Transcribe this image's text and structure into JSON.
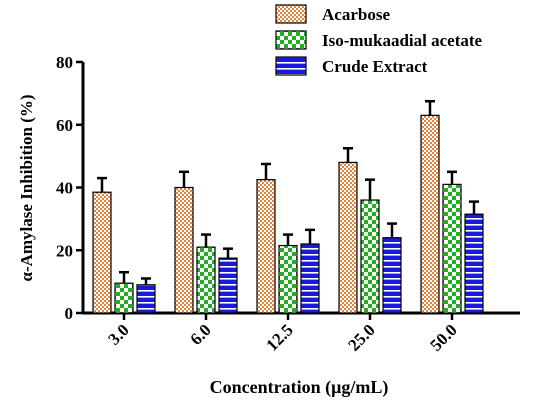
{
  "chart_data": {
    "type": "bar",
    "xlabel": "Concentration (μg/mL)",
    "ylabel": "α-Amylase Inhibition (%)",
    "categories": [
      "3.0",
      "6.0",
      "12.5",
      "25.0",
      "50.0"
    ],
    "ylim": [
      0,
      80
    ],
    "yticks": [
      0,
      20,
      40,
      60,
      80
    ],
    "grid": false,
    "legend_position": "top-right",
    "series": [
      {
        "name": "Acarbose",
        "pattern": "dots",
        "fill_color": "#ffffff",
        "pattern_color": "#e8823a",
        "values": [
          38.5,
          40,
          42.5,
          48,
          63
        ],
        "errors": [
          4.5,
          5,
          5,
          4.5,
          4.5
        ]
      },
      {
        "name": "Iso-mukaadial acetate",
        "pattern": "checker",
        "fill_color": "#ffffff",
        "pattern_color": "#22b022",
        "values": [
          9.5,
          21,
          21.5,
          36,
          41
        ],
        "errors": [
          3.5,
          4,
          3.5,
          6.5,
          4
        ]
      },
      {
        "name": "Crude Extract",
        "pattern": "hlines",
        "fill_color": "#1a1adf",
        "pattern_color": "#ffffff",
        "values": [
          9,
          17.5,
          22,
          24,
          31.5
        ],
        "errors": [
          2,
          3,
          4.5,
          4.5,
          4
        ]
      }
    ]
  }
}
